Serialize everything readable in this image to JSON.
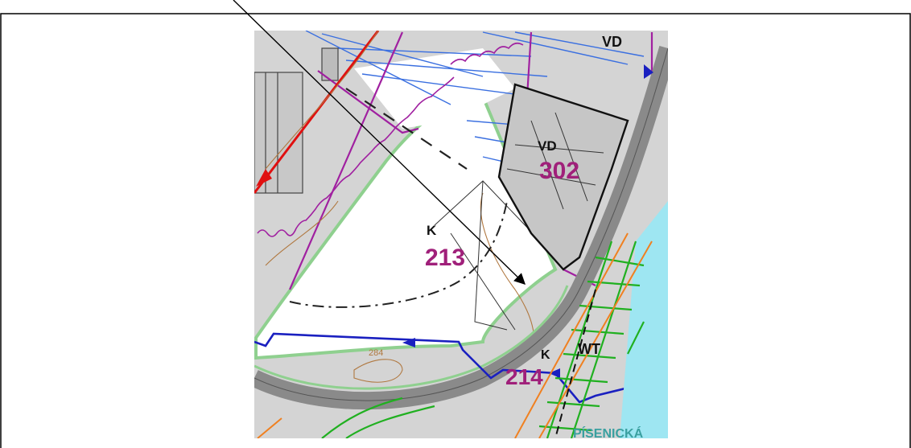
{
  "map": {
    "labels": {
      "vd_top": "VD",
      "vd_mid": "VD",
      "area_302": "302",
      "k_mid": "K",
      "area_213": "213",
      "k_bottom": "K",
      "area_214": "214",
      "wt": "WT",
      "contour_284": "284",
      "street": "PÍSENICKÁ"
    },
    "colors": {
      "background": "#d4d4d4",
      "open_area": "#ffffff",
      "hatch_blue": "#3a6fe0",
      "boundary_purple": "#a020a0",
      "purple_label": "#a0207a",
      "line_red": "#e01010",
      "line_blue": "#1a20c0",
      "road": "#8a8a8a",
      "green_lines": "#20b020",
      "orange_lines": "#f08020",
      "contour_brown": "#b07840",
      "cyan": "#90e0f0"
    }
  }
}
